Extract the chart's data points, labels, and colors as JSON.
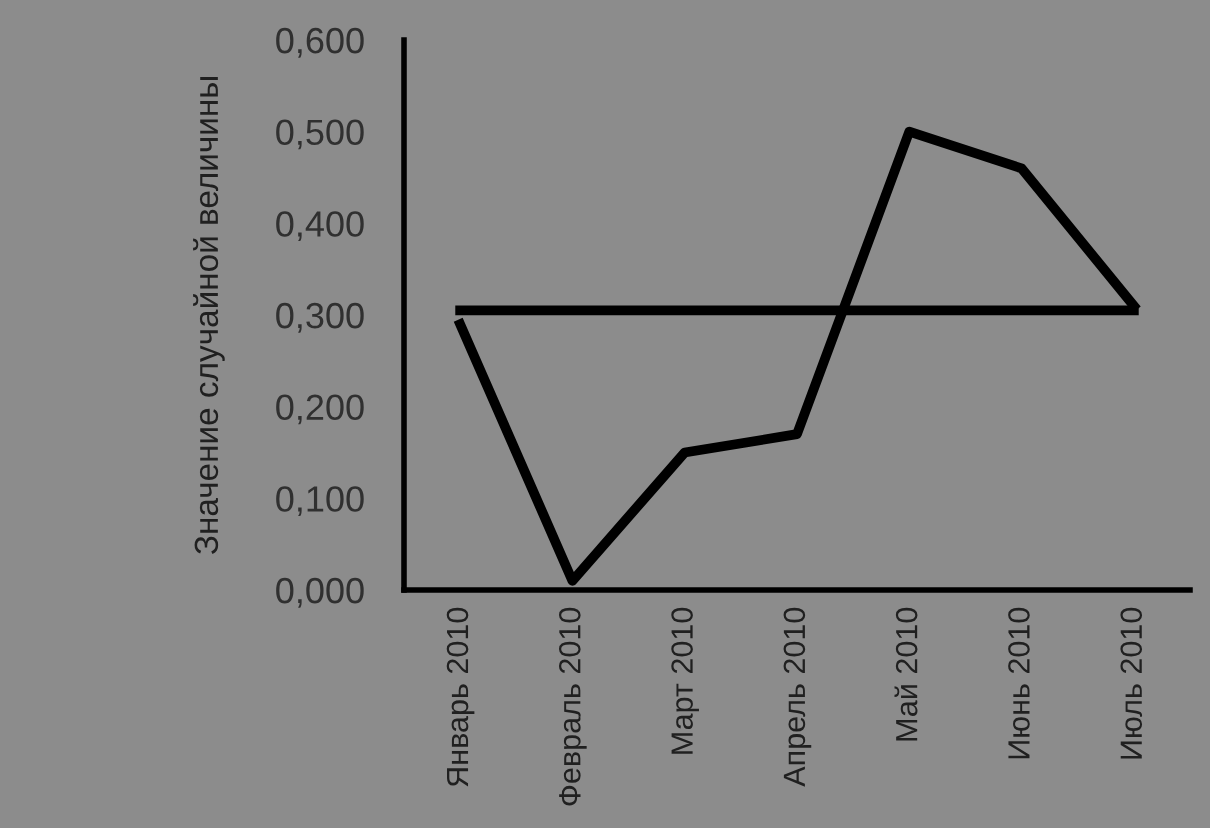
{
  "chart_data": {
    "type": "line",
    "ylabel": "Значение случайной величины",
    "categories": [
      "Январь 2010",
      "Февраль 2010",
      "Март 2010",
      "Апрель 2010",
      "Май 2010",
      "Июнь 2010",
      "Июль 2010"
    ],
    "series": [
      {
        "color": "#000000",
        "values": [
          0.29,
          0.01,
          0.15,
          0.17,
          0.5,
          0.46,
          0.31
        ]
      },
      {
        "color": "#000000",
        "values": [
          0.305,
          0.305,
          0.305,
          0.305,
          0.305,
          0.305,
          0.305
        ]
      }
    ],
    "ylim": [
      0,
      0.6
    ],
    "yticks": [
      {
        "value": 0,
        "label": "0,000"
      },
      {
        "value": 0.1,
        "label": "0,100"
      },
      {
        "value": 0.2,
        "label": "0,200"
      },
      {
        "value": 0.3,
        "label": "0,300"
      },
      {
        "value": 0.4,
        "label": "0,400"
      },
      {
        "value": 0.5,
        "label": "0,500"
      },
      {
        "value": 0.6,
        "label": "0,600"
      }
    ],
    "grid": false,
    "legend": false,
    "marker": "none",
    "line_style": "solid"
  }
}
